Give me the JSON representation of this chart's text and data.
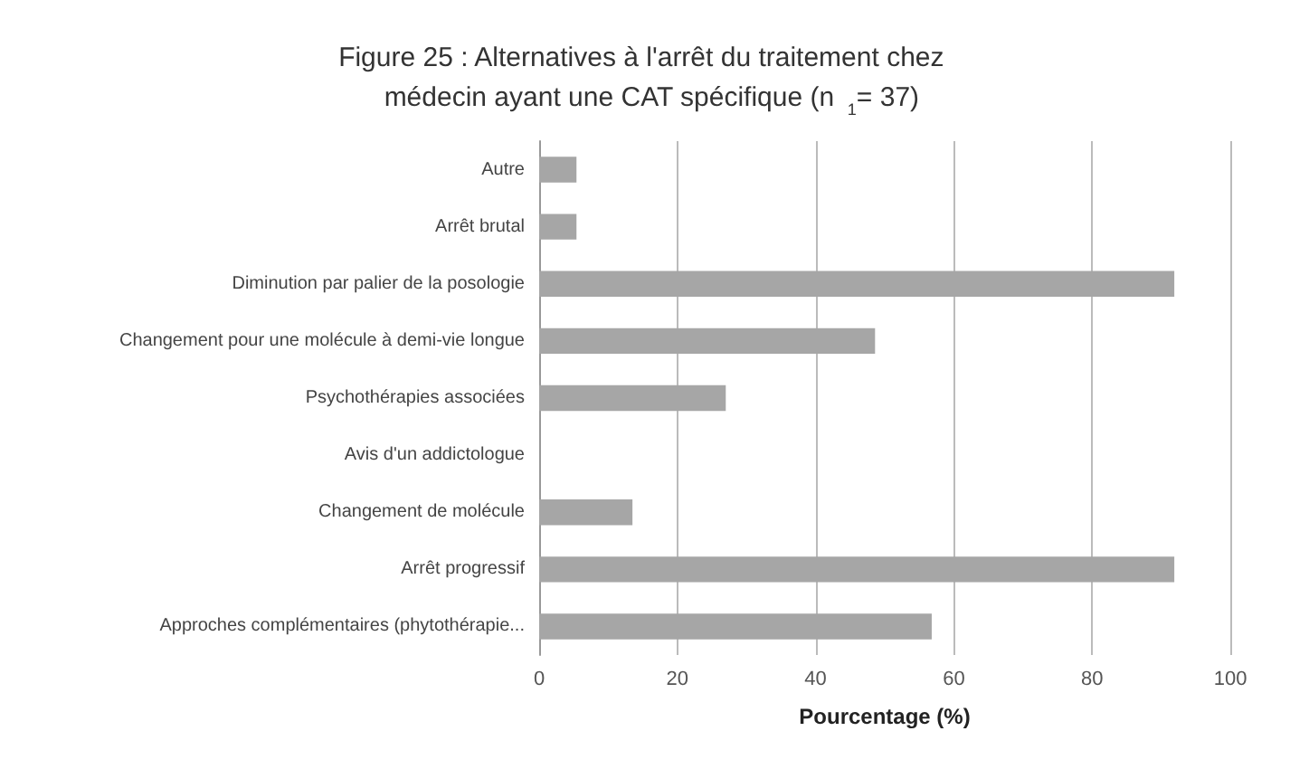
{
  "chart_data": {
    "type": "bar",
    "orientation": "horizontal",
    "title": "Figure 25 : Alternatives à l'arrêt du traitement chez médecin ayant une CAT spécifique (n$_{1}$= 37)",
    "xlabel": "Pourcentage (%)",
    "categories": [
      "Autre",
      "Arrêt brutal",
      "Diminution par palier de la posologie",
      "Changement pour une molécule à demi-vie longue",
      "Psychothérapies associées",
      "Avis d'un addictologue",
      "Changement de molécule",
      "Arrêt progressif",
      "Approches complémentaires (phytothérapie..."
    ],
    "values": [
      5.4,
      5.4,
      91.9,
      48.6,
      27,
      0,
      13.5,
      91.9,
      56.8
    ],
    "color": "#a6a6a6",
    "xlim": [
      0,
      100
    ],
    "xticks": [
      0,
      20,
      40,
      60,
      80,
      100
    ],
    "grid": "x"
  }
}
